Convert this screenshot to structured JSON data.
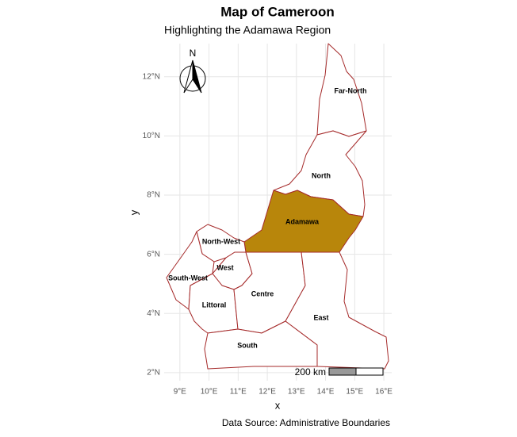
{
  "chart_data": {
    "type": "map",
    "title": "Map of Cameroon",
    "subtitle": "Highlighting the Adamawa Region",
    "xlabel": "x",
    "ylabel": "y",
    "caption": "Data Source: Administrative Boundaries",
    "xlim": [
      8.46,
      16.27
    ],
    "ylim": [
      1.73,
      13.12
    ],
    "xticks": [
      {
        "value": 9,
        "label": "9°E"
      },
      {
        "value": 10,
        "label": "10°E"
      },
      {
        "value": 11,
        "label": "11°E"
      },
      {
        "value": 12,
        "label": "12°E"
      },
      {
        "value": 13,
        "label": "13°E"
      },
      {
        "value": 14,
        "label": "14°E"
      },
      {
        "value": 15,
        "label": "15°E"
      },
      {
        "value": 16,
        "label": "16°E"
      }
    ],
    "yticks": [
      {
        "value": 2,
        "label": "2°N"
      },
      {
        "value": 4,
        "label": "4°N"
      },
      {
        "value": 6,
        "label": "6°N"
      },
      {
        "value": 8,
        "label": "8°N"
      },
      {
        "value": 10,
        "label": "10°N"
      },
      {
        "value": 12,
        "label": "12°N"
      }
    ],
    "grid": true,
    "border_color": "#a52a2a",
    "highlight_color": "#b8860b",
    "regions": [
      {
        "name": "Far-North",
        "highlighted": false
      },
      {
        "name": "North",
        "highlighted": false
      },
      {
        "name": "Adamawa",
        "highlighted": true
      },
      {
        "name": "North-West",
        "highlighted": false
      },
      {
        "name": "West",
        "highlighted": false
      },
      {
        "name": "South-West",
        "highlighted": false
      },
      {
        "name": "Littoral",
        "highlighted": false
      },
      {
        "name": "Centre",
        "highlighted": false
      },
      {
        "name": "East",
        "highlighted": false
      },
      {
        "name": "South",
        "highlighted": false
      }
    ],
    "north_label": "N",
    "scale_label": "200 km"
  }
}
